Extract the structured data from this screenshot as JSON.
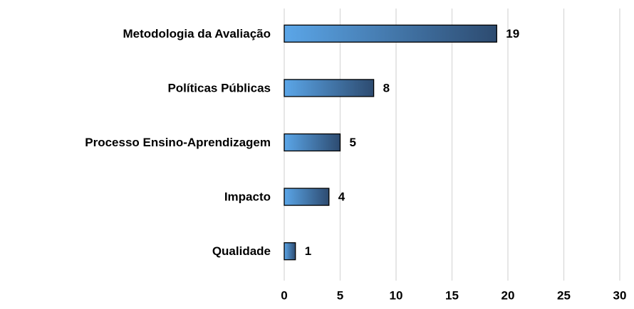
{
  "chart_data": {
    "type": "hbar",
    "categories": [
      "Metodologia da Avaliação",
      "Políticas Públicas",
      "Processo Ensino-Aprendizagem",
      "Impacto",
      "Qualidade"
    ],
    "values": [
      19,
      8,
      5,
      4,
      1
    ],
    "color": [
      "#5ba6e8",
      "#2d4b70"
    ],
    "xlim": [
      0,
      30
    ],
    "xticks": [
      0,
      5,
      10,
      15,
      20,
      25,
      30
    ],
    "grid": true
  }
}
